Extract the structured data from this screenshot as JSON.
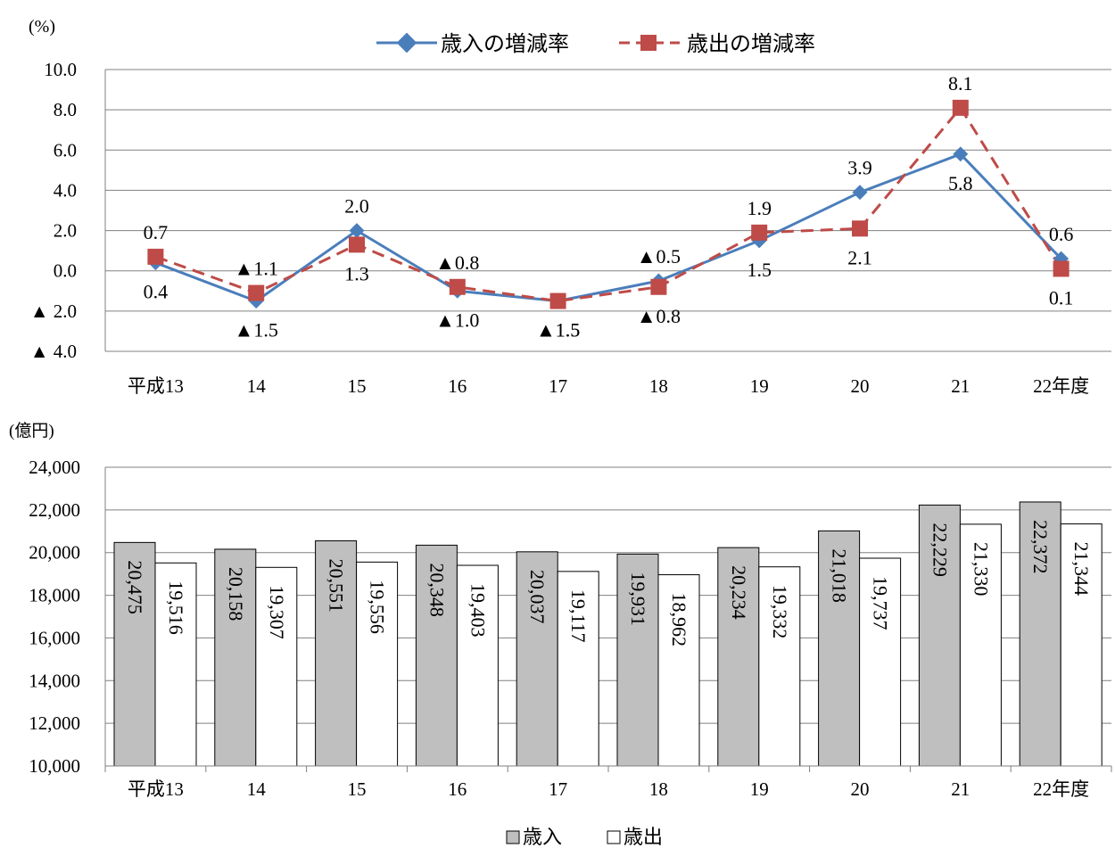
{
  "chart_data": [
    {
      "type": "line",
      "unit_label": "(%)",
      "categories": [
        "平成13",
        "14",
        "15",
        "16",
        "17",
        "18",
        "19",
        "20",
        "21",
        "22年度"
      ],
      "ylim": [
        -4.0,
        10.0
      ],
      "y_ticks": [
        10.0,
        8.0,
        6.0,
        4.0,
        2.0,
        0.0,
        -2.0,
        -4.0
      ],
      "y_tick_labels": [
        "10.0",
        "8.0",
        "6.0",
        "4.0",
        "2.0",
        "0.0",
        "▲ 2.0",
        "▲ 4.0"
      ],
      "grid": true,
      "legend_position": "top",
      "series": [
        {
          "name": "歳入の増減率",
          "color": "#4a7ebb",
          "marker": "diamond",
          "dash": false,
          "values": [
            0.4,
            -1.5,
            2.0,
            -1.0,
            -1.5,
            -0.5,
            1.5,
            3.9,
            5.8,
            0.6
          ],
          "labels": [
            "0.4",
            "▲1.5",
            "2.0",
            "▲1.0",
            "▲1.5",
            "▲0.5",
            "1.5",
            "3.9",
            "5.8",
            "0.6"
          ]
        },
        {
          "name": "歳出の増減率",
          "color": "#be4b48",
          "marker": "square",
          "dash": true,
          "values": [
            0.7,
            -1.1,
            1.3,
            -0.8,
            -1.5,
            -0.8,
            1.9,
            2.1,
            8.1,
            0.1
          ],
          "labels": [
            "0.7",
            "▲1.1",
            "1.3",
            "▲0.8",
            "▲1.5",
            "▲0.8",
            "1.9",
            "2.1",
            "8.1",
            "0.1"
          ]
        }
      ]
    },
    {
      "type": "bar",
      "unit_label": "(億円)",
      "categories": [
        "平成13",
        "14",
        "15",
        "16",
        "17",
        "18",
        "19",
        "20",
        "21",
        "22年度"
      ],
      "ylim": [
        10000,
        24000
      ],
      "y_ticks": [
        24000,
        22000,
        20000,
        18000,
        16000,
        14000,
        12000,
        10000
      ],
      "y_tick_labels": [
        "24,000",
        "22,000",
        "20,000",
        "18,000",
        "16,000",
        "14,000",
        "12,000",
        "10,000"
      ],
      "grid": true,
      "legend_position": "bottom",
      "series": [
        {
          "name": "歳入",
          "color": "#bfbfbf",
          "values": [
            20475,
            20158,
            20551,
            20348,
            20037,
            19931,
            20234,
            21018,
            22229,
            22372
          ],
          "labels": [
            "20,475",
            "20,158",
            "20,551",
            "20,348",
            "20,037",
            "19,931",
            "20,234",
            "21,018",
            "22,229",
            "22,372"
          ]
        },
        {
          "name": "歳出",
          "color": "#ffffff",
          "values": [
            19516,
            19307,
            19556,
            19403,
            19117,
            18962,
            19332,
            19737,
            21330,
            21344
          ],
          "labels": [
            "19,516",
            "19,307",
            "19,556",
            "19,403",
            "19,117",
            "18,962",
            "19,332",
            "19,737",
            "21,330",
            "21,344"
          ]
        }
      ]
    }
  ]
}
